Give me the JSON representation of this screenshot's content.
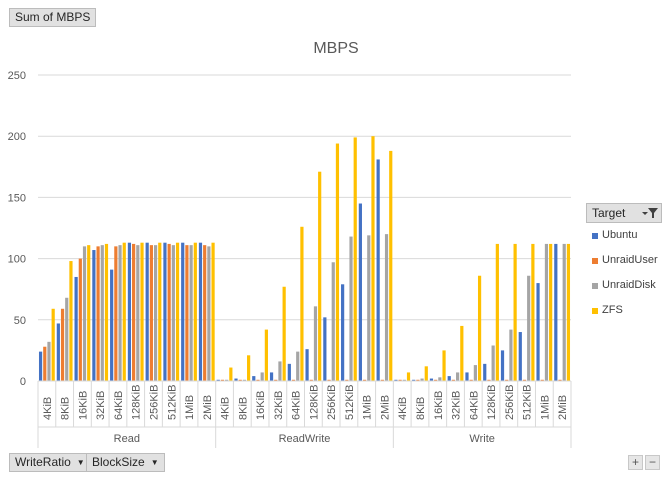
{
  "values_button": {
    "label": "Sum of MBPS"
  },
  "axis_buttons": [
    {
      "label": "WriteRatio",
      "arrow": "▼"
    },
    {
      "label": "BlockSize",
      "arrow": "▼"
    }
  ],
  "legend_header": {
    "label": "Target",
    "icons": [
      "dropdown-arrow-icon",
      "filter-icon"
    ]
  },
  "zoom": {
    "plus": "+",
    "minus": "−"
  },
  "colors": {
    "Ubuntu": "#4472c4",
    "UnraidUser": "#ed7d31",
    "UnraidDisk": "#a5a5a5",
    "ZFS": "#ffc000",
    "grid": "#d9d9d9",
    "text": "#595959"
  },
  "chart_data": {
    "type": "bar",
    "title": "MBPS",
    "ylim": [
      0,
      250
    ],
    "yticks": [
      0,
      50,
      100,
      150,
      200,
      250
    ],
    "grid": true,
    "legend_position": "right",
    "groups": [
      {
        "name": "Read",
        "categories": [
          "4KiB",
          "8KiB",
          "16KiB",
          "32KiB",
          "64KiB",
          "128KiB",
          "256KiB",
          "512KiB",
          "1MiB",
          "2MiB"
        ]
      },
      {
        "name": "ReadWrite",
        "categories": [
          "4KiB",
          "8KiB",
          "16KiB",
          "32KiB",
          "64KiB",
          "128KiB",
          "256KiB",
          "512KiB",
          "1MiB",
          "2MiB"
        ]
      },
      {
        "name": "Write",
        "categories": [
          "4KiB",
          "8KiB",
          "16KiB",
          "32KiB",
          "64KiB",
          "128KiB",
          "256KiB",
          "512KiB",
          "1MiB",
          "2MiB"
        ]
      }
    ],
    "series": [
      {
        "name": "Ubuntu",
        "color": "#4472c4",
        "values": [
          24,
          47,
          85,
          107,
          91,
          113,
          113,
          113,
          113,
          113,
          1,
          2,
          4,
          7,
          14,
          26,
          52,
          79,
          145,
          181,
          1,
          1,
          2,
          4,
          7,
          14,
          25,
          40,
          80,
          112
        ]
      },
      {
        "name": "UnraidUser",
        "color": "#ed7d31",
        "values": [
          28,
          59,
          100,
          110,
          110,
          112,
          111,
          112,
          111,
          111,
          1,
          1,
          1,
          1,
          1,
          1,
          1,
          1,
          1,
          1,
          1,
          1,
          1,
          1,
          1,
          1,
          1,
          1,
          1,
          1
        ]
      },
      {
        "name": "UnraidDisk",
        "color": "#a5a5a5",
        "values": [
          32,
          68,
          110,
          111,
          111,
          111,
          111,
          111,
          111,
          110,
          1,
          1,
          7,
          16,
          24,
          61,
          97,
          118,
          119,
          120,
          1,
          2,
          3,
          7,
          13,
          29,
          42,
          86,
          112,
          112
        ]
      },
      {
        "name": "ZFS",
        "color": "#ffc000",
        "values": [
          59,
          98,
          111,
          112,
          113,
          113,
          113,
          113,
          113,
          113,
          11,
          21,
          42,
          77,
          126,
          171,
          194,
          199,
          200,
          188,
          7,
          12,
          25,
          45,
          86,
          112,
          112,
          112,
          112,
          112
        ]
      }
    ]
  }
}
